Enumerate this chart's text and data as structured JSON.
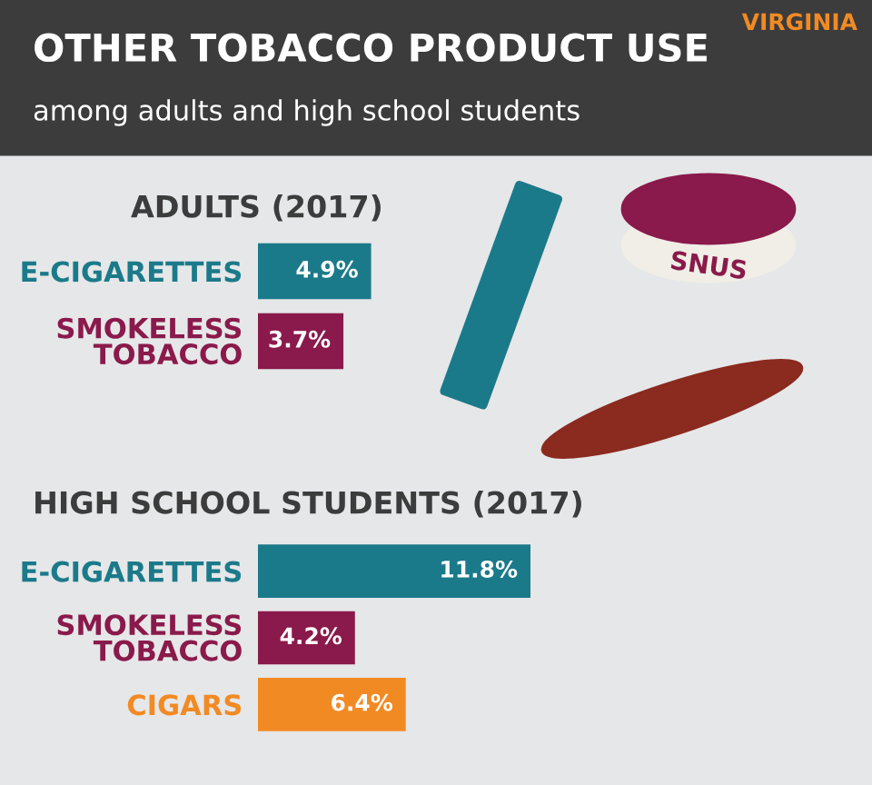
{
  "chart_data": [
    {
      "type": "other",
      "title": "OTHER TOBACCO PRODUCT USE",
      "subtitle": "among adults and high school students",
      "annotations": [
        "VIRGINIA",
        "SNUS"
      ]
    },
    {
      "type": "bar",
      "orientation": "horizontal",
      "title": "ADULTS (2017)",
      "categories": [
        "E-CIGARETTES",
        "SMOKELESS\nTOBACCO"
      ],
      "values": [
        4.9,
        3.7
      ],
      "colors": [
        "#1b7a8a",
        "#8a1a4b"
      ],
      "value_labels": [
        "4.9%",
        "3.7%"
      ]
    },
    {
      "type": "bar",
      "orientation": "horizontal",
      "title": "HIGH SCHOOL STUDENTS (2017)",
      "categories": [
        "E-CIGARETTES",
        "SMOKELESS\nTOBACCO",
        "CIGARS"
      ],
      "values": [
        11.8,
        4.2,
        6.4
      ],
      "colors": [
        "#1b7a8a",
        "#8a1a4b",
        "#f28a24"
      ],
      "value_labels": [
        "11.8%",
        "4.2%",
        "6.4%"
      ]
    }
  ]
}
